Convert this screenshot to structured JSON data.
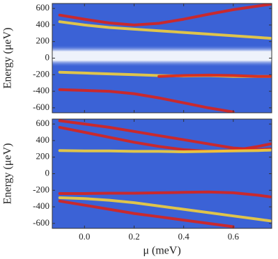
{
  "chart_data": [
    {
      "type": "line",
      "y_label": "Energy (μeV)",
      "x": [
        -0.1,
        0,
        0.1,
        0.2,
        0.3,
        0.4,
        0.5,
        0.6,
        0.7,
        0.75
      ],
      "xlim": [
        -0.13,
        0.755
      ],
      "xticks": [
        0,
        0.2,
        0.4,
        0.6
      ],
      "ylim": [
        -660,
        660
      ],
      "yticks": [
        600,
        400,
        200,
        0,
        -200,
        -400,
        -600
      ],
      "background": "#3b62d6",
      "series": [
        {
          "color": "#d8231c",
          "values": [
            520,
            470,
            425,
            400,
            420,
            470,
            530,
            585,
            630,
            650
          ]
        },
        {
          "color": "#f2cf3c",
          "values": [
            440,
            400,
            370,
            350,
            330,
            310,
            290,
            270,
            250,
            240
          ]
        },
        {
          "color": "#f2cf3c",
          "values": [
            -170,
            -180,
            -190,
            -200,
            -210,
            -215,
            -210,
            -220,
            -220,
            -220
          ]
        },
        {
          "color": "#d8231c",
          "values": [
            null,
            null,
            null,
            null,
            -220,
            -210,
            -205,
            -210,
            -220,
            -220
          ]
        },
        {
          "color": "#d8231c",
          "values": [
            -380,
            -390,
            -400,
            -430,
            -480,
            -540,
            -600,
            -650,
            null,
            null
          ]
        }
      ]
    },
    {
      "type": "line",
      "y_label": "Energy (μeV)",
      "x_label": "μ (meV)",
      "x": [
        -0.1,
        0,
        0.1,
        0.2,
        0.3,
        0.4,
        0.5,
        0.6,
        0.7,
        0.75
      ],
      "xlim": [
        -0.13,
        0.755
      ],
      "xticks": [
        {
          "value": 0,
          "label": "0.0"
        },
        0.2,
        0.4,
        0.6
      ],
      "ylim": [
        -660,
        660
      ],
      "yticks": [
        600,
        400,
        200,
        0,
        -200,
        -400,
        -600
      ],
      "background": "#3b62d6",
      "series": [
        {
          "color": "#d8231c",
          "values": [
            560,
            500,
            440,
            380,
            330,
            290,
            270,
            280,
            330,
            360
          ]
        },
        {
          "color": "#d8231c",
          "values": [
            640,
            600,
            560,
            510,
            460,
            410,
            360,
            310,
            290,
            300
          ]
        },
        {
          "color": "#f2cf3c",
          "values": [
            280,
            275,
            275,
            270,
            270,
            265,
            270,
            275,
            280,
            285
          ]
        },
        {
          "color": "#d8231c",
          "values": [
            -240,
            -240,
            -235,
            -235,
            -230,
            -225,
            -220,
            -230,
            -260,
            -280
          ]
        },
        {
          "color": "#d8231c",
          "values": [
            -330,
            -380,
            -430,
            -480,
            -520,
            -560,
            -600,
            -640,
            null,
            null
          ]
        },
        {
          "color": "#f2cf3c",
          "values": [
            -290,
            -300,
            -320,
            -350,
            -390,
            -430,
            -470,
            -510,
            -550,
            -570
          ]
        }
      ]
    }
  ]
}
